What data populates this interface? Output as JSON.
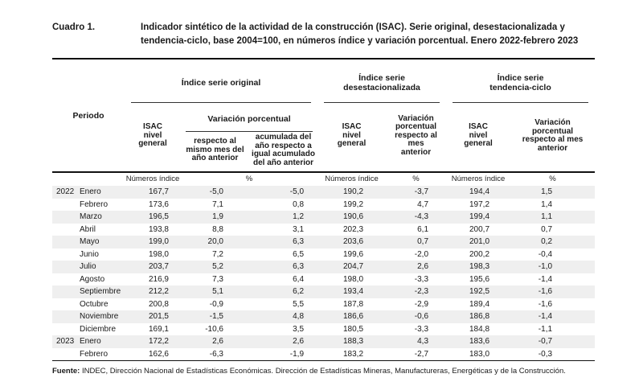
{
  "title": {
    "label": "Cuadro 1.",
    "text": "Indicador sintético de la actividad de la construcción (ISAC). Serie original, desestacionalizada y\ntendencia-ciclo, base 2004=100, en números índice y variación porcentual. Enero 2022-febrero 2023"
  },
  "table": {
    "periodo_label": "Periodo",
    "groups": {
      "original": "Índice serie original",
      "desestacionalizada": "Índice serie\ndesestacionalizada",
      "tendencia": "Índice serie\ntendencia-ciclo"
    },
    "subgroup_variacion": "Variación porcentual",
    "columns": {
      "isac_original": "ISAC\nnivel\ngeneral",
      "var_mismo_mes": "respecto al\nmismo mes del\naño anterior",
      "var_acumulada": "acumulada del\naño respecto a\nigual acumulado\ndel año anterior",
      "isac_desest": "ISAC\nnivel\ngeneral",
      "var_desest": "Variación\nporcentual\nrespecto al mes\nanterior",
      "isac_tendencia": "ISAC\nnivel\ngeneral",
      "var_tendencia": "Variación\nporcentual\nrespecto al mes\nanterior"
    },
    "units": [
      "Números índice",
      "%",
      "Números índice",
      "%",
      "Números índice",
      "%"
    ],
    "rows": [
      {
        "year": "2022",
        "month": "Enero",
        "values": [
          "167,7",
          "-5,0",
          "-5,0",
          "190,2",
          "-3,7",
          "194,4",
          "1,5"
        ]
      },
      {
        "year": "",
        "month": "Febrero",
        "values": [
          "173,6",
          "7,1",
          "0,8",
          "199,2",
          "4,7",
          "197,2",
          "1,4"
        ]
      },
      {
        "year": "",
        "month": "Marzo",
        "values": [
          "196,5",
          "1,9",
          "1,2",
          "190,6",
          "-4,3",
          "199,4",
          "1,1"
        ]
      },
      {
        "year": "",
        "month": "Abril",
        "values": [
          "193,8",
          "8,8",
          "3,1",
          "202,3",
          "6,1",
          "200,7",
          "0,7"
        ]
      },
      {
        "year": "",
        "month": "Mayo",
        "values": [
          "199,0",
          "20,0",
          "6,3",
          "203,6",
          "0,7",
          "201,0",
          "0,2"
        ]
      },
      {
        "year": "",
        "month": "Junio",
        "values": [
          "198,0",
          "7,2",
          "6,5",
          "199,6",
          "-2,0",
          "200,2",
          "-0,4"
        ]
      },
      {
        "year": "",
        "month": "Julio",
        "values": [
          "203,7",
          "5,2",
          "6,3",
          "204,7",
          "2,6",
          "198,3",
          "-1,0"
        ]
      },
      {
        "year": "",
        "month": "Agosto",
        "values": [
          "216,9",
          "7,3",
          "6,4",
          "198,0",
          "-3,3",
          "195,6",
          "-1,4"
        ]
      },
      {
        "year": "",
        "month": "Septiembre",
        "values": [
          "212,2",
          "5,1",
          "6,2",
          "193,4",
          "-2,3",
          "192,5",
          "-1,6"
        ]
      },
      {
        "year": "",
        "month": "Octubre",
        "values": [
          "200,8",
          "-0,9",
          "5,5",
          "187,8",
          "-2,9",
          "189,4",
          "-1,6"
        ]
      },
      {
        "year": "",
        "month": "Noviembre",
        "values": [
          "201,5",
          "-1,5",
          "4,8",
          "186,6",
          "-0,6",
          "186,8",
          "-1,4"
        ]
      },
      {
        "year": "",
        "month": "Diciembre",
        "values": [
          "169,1",
          "-10,6",
          "3,5",
          "180,5",
          "-3,3",
          "184,8",
          "-1,1"
        ]
      },
      {
        "year": "2023",
        "month": "Enero",
        "values": [
          "172,2",
          "2,6",
          "2,6",
          "188,3",
          "4,3",
          "183,6",
          "-0,7"
        ]
      },
      {
        "year": "",
        "month": "Febrero",
        "values": [
          "162,6",
          "-6,3",
          "-1,9",
          "183,2",
          "-2,7",
          "183,0",
          "-0,3"
        ]
      }
    ]
  },
  "footer": {
    "label": "Fuente:",
    "text": "INDEC, Dirección Nacional de Estadísticas Económicas. Dirección de Estadísticas Mineras, Manufactureras, Energéticas y de la Construcción."
  },
  "colors": {
    "stripe": "#efefef",
    "rule": "#111111",
    "text": "#1a1a1a"
  }
}
